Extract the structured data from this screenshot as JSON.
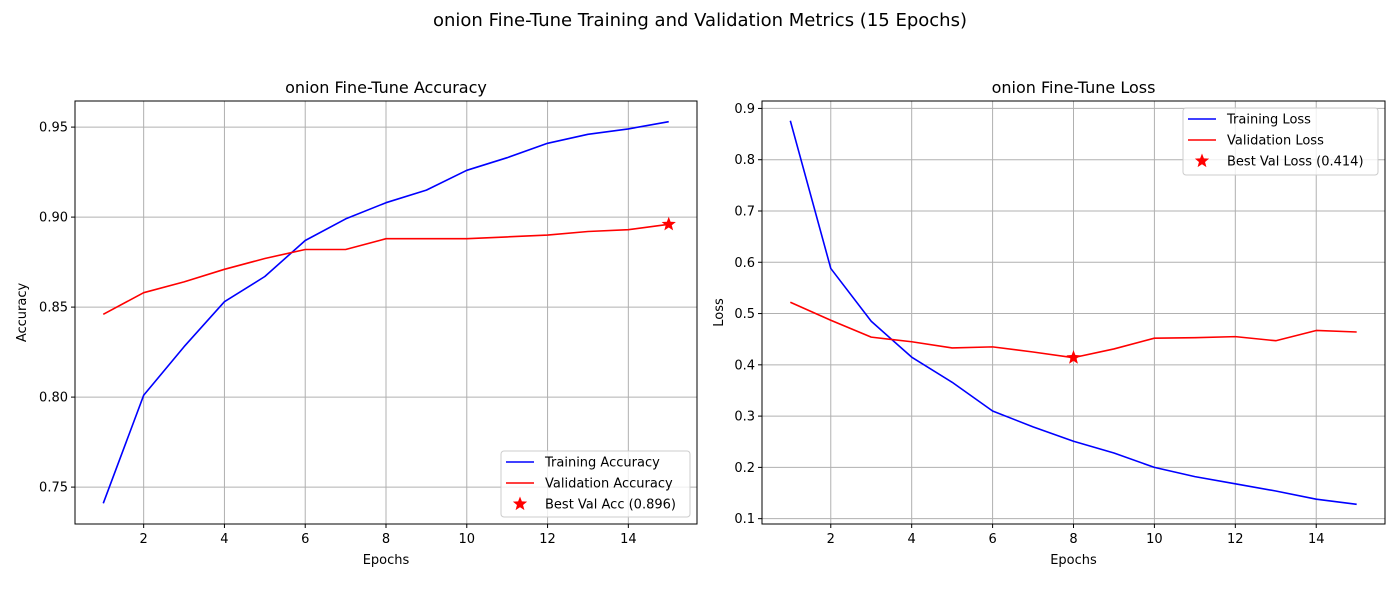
{
  "figure": {
    "suptitle": "onion Fine-Tune Training and Validation Metrics (15 Epochs)"
  },
  "chart_data": [
    {
      "type": "line",
      "title": "onion Fine-Tune Accuracy",
      "xlabel": "Epochs",
      "ylabel": "Accuracy",
      "x": [
        1,
        2,
        3,
        4,
        5,
        6,
        7,
        8,
        9,
        10,
        11,
        12,
        13,
        14,
        15
      ],
      "xlim": [
        0.3,
        15.7
      ],
      "ylim": [
        0.7295,
        0.9645
      ],
      "xticks": [
        2,
        4,
        6,
        8,
        10,
        12,
        14
      ],
      "yticks": [
        0.75,
        0.8,
        0.85,
        0.9,
        0.95
      ],
      "ytick_labels": [
        "0.75",
        "0.80",
        "0.85",
        "0.90",
        "0.95"
      ],
      "grid": true,
      "legend_position": "lower-right",
      "series": [
        {
          "name": "Training Accuracy",
          "color": "#0000ff",
          "values": [
            0.741,
            0.801,
            0.828,
            0.853,
            0.867,
            0.887,
            0.899,
            0.908,
            0.915,
            0.926,
            0.933,
            0.941,
            0.946,
            0.949,
            0.953
          ]
        },
        {
          "name": "Validation Accuracy",
          "color": "#ff0000",
          "values": [
            0.846,
            0.858,
            0.864,
            0.871,
            0.877,
            0.882,
            0.882,
            0.888,
            0.888,
            0.888,
            0.889,
            0.89,
            0.892,
            0.893,
            0.896
          ]
        }
      ],
      "best_point": {
        "name": "Best Val Acc (0.896)",
        "color": "#ff0000",
        "marker": "star",
        "x": 15,
        "y": 0.896
      }
    },
    {
      "type": "line",
      "title": "onion Fine-Tune Loss",
      "xlabel": "Epochs",
      "ylabel": "Loss",
      "x": [
        1,
        2,
        3,
        4,
        5,
        6,
        7,
        8,
        9,
        10,
        11,
        12,
        13,
        14,
        15
      ],
      "xlim": [
        0.3,
        15.7
      ],
      "ylim": [
        0.0896,
        0.9145
      ],
      "xticks": [
        2,
        4,
        6,
        8,
        10,
        12,
        14
      ],
      "yticks": [
        0.1,
        0.2,
        0.3,
        0.4,
        0.5,
        0.6,
        0.7,
        0.8,
        0.9
      ],
      "ytick_labels": [
        "0.1",
        "0.2",
        "0.3",
        "0.4",
        "0.5",
        "0.6",
        "0.7",
        "0.8",
        "0.9"
      ],
      "grid": true,
      "legend_position": "top-right",
      "series": [
        {
          "name": "Training Loss",
          "color": "#0000ff",
          "values": [
            0.876,
            0.588,
            0.485,
            0.415,
            0.366,
            0.31,
            0.279,
            0.251,
            0.228,
            0.2,
            0.182,
            0.168,
            0.154,
            0.138,
            0.128
          ]
        },
        {
          "name": "Validation Loss",
          "color": "#ff0000",
          "values": [
            0.522,
            0.487,
            0.454,
            0.445,
            0.433,
            0.435,
            0.425,
            0.414,
            0.431,
            0.452,
            0.453,
            0.455,
            0.447,
            0.467,
            0.464
          ]
        }
      ],
      "best_point": {
        "name": "Best Val Loss (0.414)",
        "color": "#ff0000",
        "marker": "star",
        "x": 8,
        "y": 0.414
      }
    }
  ]
}
